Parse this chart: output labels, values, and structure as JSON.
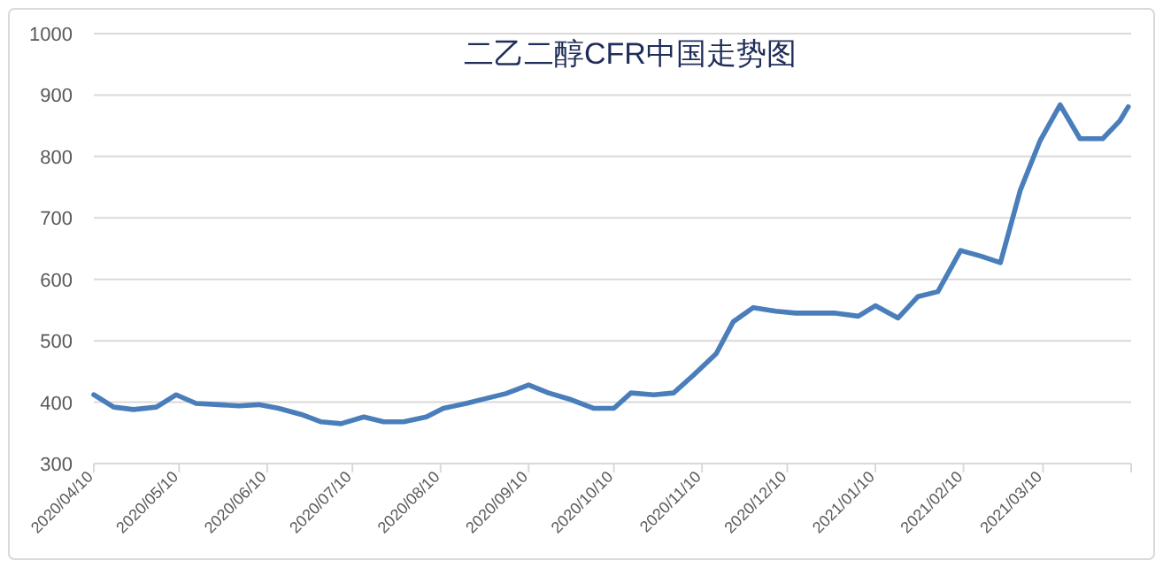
{
  "chart_data": {
    "type": "line",
    "title": "二乙二醇CFR中国走势图",
    "x": [
      "2020-04-10",
      "2020-04-17",
      "2020-04-24",
      "2020-05-02",
      "2020-05-09",
      "2020-05-16",
      "2020-05-24",
      "2020-05-31",
      "2020-06-07",
      "2020-06-14",
      "2020-06-22",
      "2020-06-29",
      "2020-07-06",
      "2020-07-14",
      "2020-07-21",
      "2020-07-28",
      "2020-08-05",
      "2020-08-11",
      "2020-08-19",
      "2020-08-26",
      "2020-09-02",
      "2020-09-10",
      "2020-09-17",
      "2020-09-25",
      "2020-10-03",
      "2020-10-10",
      "2020-10-16",
      "2020-10-24",
      "2020-10-31",
      "2020-11-07",
      "2020-11-15",
      "2020-11-21",
      "2020-11-28",
      "2020-12-06",
      "2020-12-13",
      "2020-12-20",
      "2020-12-27",
      "2021-01-04",
      "2021-01-10",
      "2021-01-18",
      "2021-01-25",
      "2021-02-01",
      "2021-02-09",
      "2021-02-16",
      "2021-02-23",
      "2021-03-02",
      "2021-03-09",
      "2021-03-16",
      "2021-03-23",
      "2021-03-31",
      "2021-04-06",
      "2021-04-09"
    ],
    "series": [
      {
        "color": "#4a7ebb",
        "values": [
          412,
          392,
          388,
          392,
          412,
          398,
          396,
          394,
          396,
          390,
          380,
          368,
          365,
          376,
          368,
          368,
          376,
          390,
          398,
          406,
          414,
          428,
          415,
          404,
          390,
          390,
          415,
          412,
          415,
          444,
          479,
          531,
          554,
          548,
          545,
          545,
          545,
          540,
          557,
          537,
          572,
          580,
          647,
          638,
          627,
          745,
          826,
          884,
          829,
          829,
          858,
          881
        ]
      }
    ],
    "xlim": [
      "2020-04-10",
      "2021-04-10"
    ],
    "xticks": [
      {
        "value": "2020-04-10",
        "label": "2020/04/10"
      },
      {
        "value": "2020-05-10",
        "label": "2020/05/10"
      },
      {
        "value": "2020-06-10",
        "label": "2020/06/10"
      },
      {
        "value": "2020-07-10",
        "label": "2020/07/10"
      },
      {
        "value": "2020-08-10",
        "label": "2020/08/10"
      },
      {
        "value": "2020-09-10",
        "label": "2020/09/10"
      },
      {
        "value": "2020-10-10",
        "label": "2020/10/10"
      },
      {
        "value": "2020-11-10",
        "label": "2020/11/10"
      },
      {
        "value": "2020-12-10",
        "label": "2020/12/10"
      },
      {
        "value": "2021-01-10",
        "label": "2021/01/10"
      },
      {
        "value": "2021-02-10",
        "label": "2021/02/10"
      },
      {
        "value": "2021-03-10",
        "label": "2021/03/10"
      }
    ],
    "ylim": [
      300,
      1000
    ],
    "yticks": [
      300,
      400,
      500,
      600,
      700,
      800,
      900,
      1000
    ],
    "grid": "y",
    "marker": "none",
    "line_style": "solid"
  }
}
